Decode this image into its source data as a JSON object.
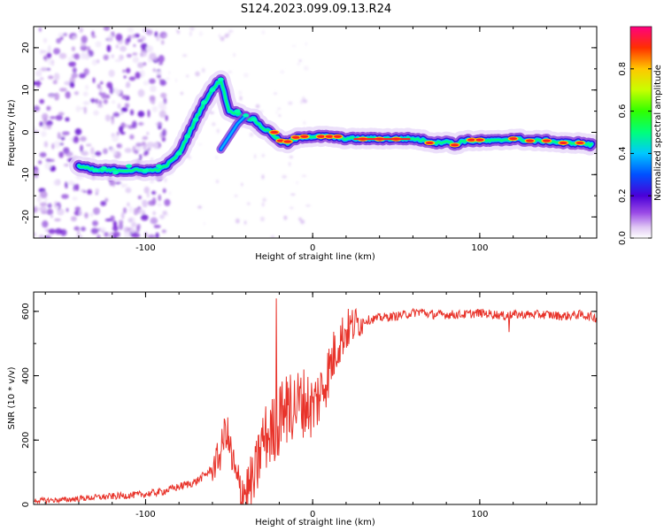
{
  "title": "S124.2023.099.09.13.R24",
  "chart_data": [
    {
      "type": "heatmap",
      "name": "spectrogram",
      "xlabel": "Height of straight line (km)",
      "ylabel": "Frequency (Hz)",
      "xlim": [
        -167,
        170
      ],
      "ylim": [
        -25,
        25
      ],
      "xticks": [
        -100,
        0,
        100
      ],
      "yticks": [
        -20,
        -10,
        0,
        10,
        20
      ],
      "ridge": {
        "x": [
          -140,
          -130,
          -120,
          -110,
          -100,
          -95,
          -90,
          -85,
          -80,
          -75,
          -70,
          -65,
          -60,
          -55,
          -50,
          -45,
          -40,
          -35,
          -30,
          -25,
          -20,
          -15,
          -10,
          -5,
          0,
          10,
          20,
          40,
          60,
          75,
          80,
          85,
          90,
          100,
          110,
          120,
          130,
          140,
          150,
          160,
          167
        ],
        "y": [
          -8,
          -9,
          -9,
          -9,
          -9,
          -9,
          -8.5,
          -7,
          -5,
          -1,
          3,
          7,
          10,
          12.5,
          5,
          4.5,
          3.5,
          3,
          1,
          0,
          -2,
          -2.5,
          -1.5,
          -1,
          -1,
          -1,
          -1.5,
          -1.5,
          -1.5,
          -2.5,
          -2,
          -3,
          -2,
          -2,
          -2,
          -1.5,
          -2,
          -2,
          -2.5,
          -2.5,
          -3
        ]
      },
      "colorbar": {
        "label": "Normalized spectral amplitude",
        "ticks": [
          "0.0",
          "0.2",
          "0.4",
          "0.6",
          "0.8"
        ],
        "range": [
          0,
          1
        ]
      }
    },
    {
      "type": "line",
      "name": "snr",
      "xlabel": "Height of straight line (km)",
      "ylabel": "SNR (10 * v/v)",
      "xlim": [
        -167,
        170
      ],
      "ylim": [
        0,
        660
      ],
      "xticks": [
        -100,
        0,
        100
      ],
      "yticks": [
        0,
        200,
        400,
        600
      ],
      "color": "#e8332a",
      "series": [
        {
          "name": "SNR",
          "x": [
            -167,
            -150,
            -140,
            -130,
            -120,
            -110,
            -100,
            -90,
            -80,
            -70,
            -60,
            -55,
            -52,
            -48,
            -45,
            -40,
            -35,
            -30,
            -25,
            -20,
            -15,
            -10,
            -5,
            0,
            5,
            10,
            15,
            20,
            25,
            30,
            40,
            50,
            60,
            65,
            70,
            80,
            90,
            100,
            110,
            115,
            120,
            130,
            140,
            150,
            160,
            165,
            170
          ],
          "y": [
            12,
            14,
            18,
            22,
            25,
            28,
            32,
            40,
            55,
            70,
            110,
            160,
            240,
            130,
            60,
            40,
            70,
            200,
            220,
            260,
            300,
            310,
            320,
            300,
            350,
            420,
            500,
            540,
            560,
            570,
            580,
            585,
            595,
            600,
            590,
            590,
            590,
            595,
            590,
            585,
            590,
            590,
            590,
            585,
            590,
            585,
            580
          ]
        }
      ]
    }
  ]
}
